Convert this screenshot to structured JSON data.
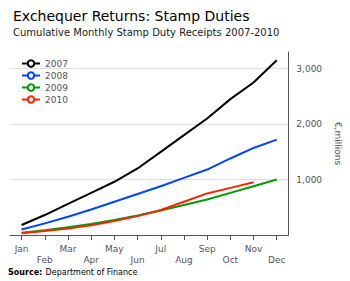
{
  "chart_data": {
    "type": "line",
    "title": "Exchequer Returns: Stamp Duties",
    "subtitle": "Cumulative Monthly Stamp Duty Receipts 2007-2010",
    "y_label": "€,millions",
    "annotations": [
      "Source:",
      "Department of Finance"
    ],
    "categories": [
      "Jan",
      "Feb",
      "Mar",
      "Apr",
      "May",
      "Jun",
      "Jul",
      "Aug",
      "Sep",
      "Oct",
      "Nov",
      "Dec"
    ],
    "series": [
      {
        "name": "2007",
        "color": "#000000",
        "values": [
          180,
          360,
          560,
          760,
          960,
          1200,
          1500,
          1800,
          2100,
          2450,
          2750,
          3150
        ]
      },
      {
        "name": "2008",
        "color": "#0044ff",
        "values": [
          100,
          210,
          330,
          460,
          600,
          740,
          880,
          1030,
          1180,
          1380,
          1570,
          1720
        ]
      },
      {
        "name": "2009",
        "color": "#009900",
        "values": [
          40,
          85,
          140,
          200,
          270,
          350,
          440,
          540,
          640,
          760,
          880,
          1000
        ]
      },
      {
        "name": "2010",
        "color": "#ff2200",
        "values": [
          30,
          70,
          115,
          175,
          250,
          340,
          450,
          600,
          750,
          850,
          950,
          null
        ]
      }
    ],
    "ylim": [
      0,
      3300
    ],
    "yticks": [
      {
        "value": 1000,
        "label": "1,000"
      },
      {
        "value": 2000,
        "label": "2,000"
      },
      {
        "value": 3000,
        "label": "3,000"
      }
    ],
    "grid": true,
    "legend": "upper left"
  }
}
